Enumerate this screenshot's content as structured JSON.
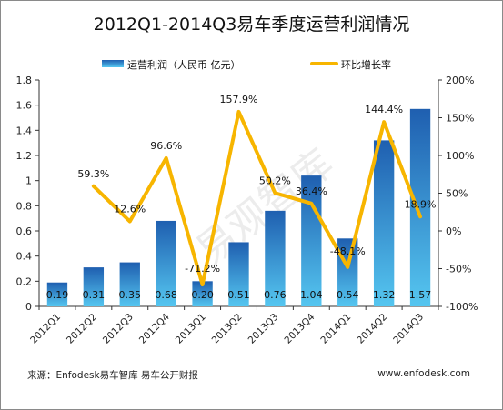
{
  "chart_data": {
    "type": "bar",
    "title": "2012Q1-2014Q3易车季度运营利润情况",
    "categories": [
      "2012Q1",
      "2012Q2",
      "2012Q3",
      "2012Q4",
      "2013Q1",
      "2013Q2",
      "2013Q3",
      "2013Q4",
      "2014Q1",
      "2014Q2",
      "2014Q3"
    ],
    "series": [
      {
        "name": "运营利润（人民币 亿元）",
        "type": "bar",
        "axis": "left",
        "values": [
          0.19,
          0.31,
          0.35,
          0.68,
          0.2,
          0.51,
          0.76,
          1.04,
          0.54,
          1.32,
          1.57
        ],
        "labels": [
          "0.19",
          "0.31",
          "0.35",
          "0.68",
          "0.20",
          "0.51",
          "0.76",
          "1.04",
          "0.54",
          "1.32",
          "1.57"
        ]
      },
      {
        "name": "环比增长率",
        "type": "line",
        "axis": "right",
        "values": [
          null,
          59.3,
          12.6,
          96.6,
          -71.2,
          157.9,
          50.2,
          36.4,
          -48.1,
          144.4,
          18.9
        ],
        "labels": [
          "",
          "59.3%",
          "12.6%",
          "96.6%",
          "-71.2%",
          "157.9%",
          "50.2%",
          "36.4%",
          "-48.1%",
          "144.4%",
          "18.9%"
        ]
      }
    ],
    "y_left": {
      "min": 0,
      "max": 1.8,
      "ticks": [
        "0",
        "0.2",
        "0.4",
        "0.6",
        "0.8",
        "1",
        "1.2",
        "1.4",
        "1.6",
        "1.8"
      ]
    },
    "y_right": {
      "min": -100,
      "max": 200,
      "ticks": [
        "-100%",
        "-50%",
        "0%",
        "50%",
        "100%",
        "150%",
        "200%"
      ]
    },
    "grid": false,
    "legend_position": "top",
    "colors": {
      "bar_top": "#1f5fb0",
      "bar_bottom": "#55c6f0",
      "line": "#f7b500"
    }
  },
  "watermark": "易观智库",
  "footer": {
    "source": "来源：Enfodesk易车智库 易车公开财报",
    "site": "www.enfodesk.com"
  }
}
